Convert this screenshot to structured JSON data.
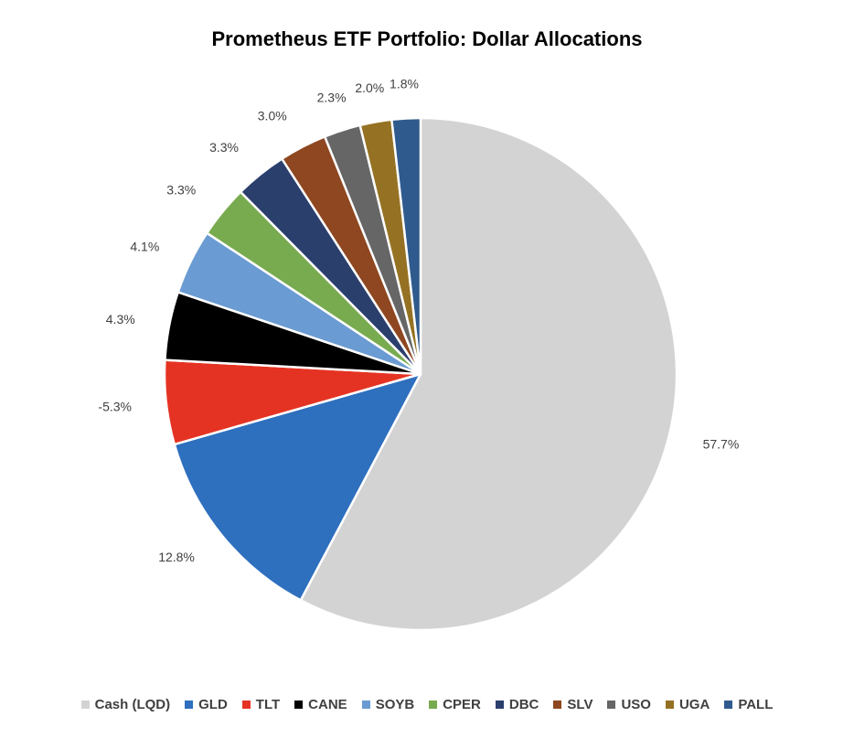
{
  "chart_data": {
    "type": "pie",
    "title": "Prometheus ETF Portfolio: Dollar Allocations",
    "legend_position": "bottom",
    "slices": [
      {
        "label": "Cash (LQD)",
        "value": 57.7,
        "display": "57.7%",
        "color": "#d3d3d3"
      },
      {
        "label": "GLD",
        "value": 12.8,
        "display": "12.8%",
        "color": "#2e6fbe"
      },
      {
        "label": "TLT",
        "value": 5.3,
        "display": "-5.3%",
        "color": "#e53323"
      },
      {
        "label": "CANE",
        "value": 4.3,
        "display": "4.3%",
        "color": "#000000"
      },
      {
        "label": "SOYB",
        "value": 4.1,
        "display": "4.1%",
        "color": "#6a9bd2"
      },
      {
        "label": "CPER",
        "value": 3.3,
        "display": "3.3%",
        "color": "#78ab4f"
      },
      {
        "label": "DBC",
        "value": 3.3,
        "display": "3.3%",
        "color": "#2b3f6d"
      },
      {
        "label": "SLV",
        "value": 3.0,
        "display": "3.0%",
        "color": "#8e4720"
      },
      {
        "label": "USO",
        "value": 2.3,
        "display": "2.3%",
        "color": "#666666"
      },
      {
        "label": "UGA",
        "value": 2.0,
        "display": "2.0%",
        "color": "#957223"
      },
      {
        "label": "PALL",
        "value": 1.8,
        "display": "1.8%",
        "color": "#2f5a8d"
      }
    ]
  }
}
